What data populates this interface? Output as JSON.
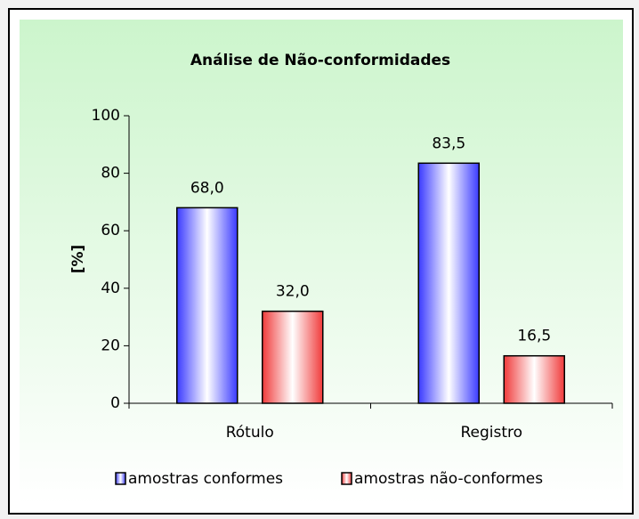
{
  "chart_data": {
    "type": "bar",
    "title": "Análise de Não-conformidades",
    "y_label": "[%]",
    "categories": [
      "Rótulo",
      "Registro"
    ],
    "series": [
      {
        "name": "amostras conformes",
        "color": "#3a3aff",
        "values": [
          68.0,
          83.5
        ],
        "value_labels": [
          "68,0",
          "83,5"
        ]
      },
      {
        "name": "amostras não-conformes",
        "color": "#f03a3a",
        "values": [
          32.0,
          16.5
        ],
        "value_labels": [
          "32,0",
          "16,5"
        ]
      }
    ],
    "ylim": [
      0,
      100
    ],
    "yticks": [
      0,
      20,
      40,
      60,
      80,
      100
    ],
    "grid": false,
    "legend": "bottom"
  }
}
